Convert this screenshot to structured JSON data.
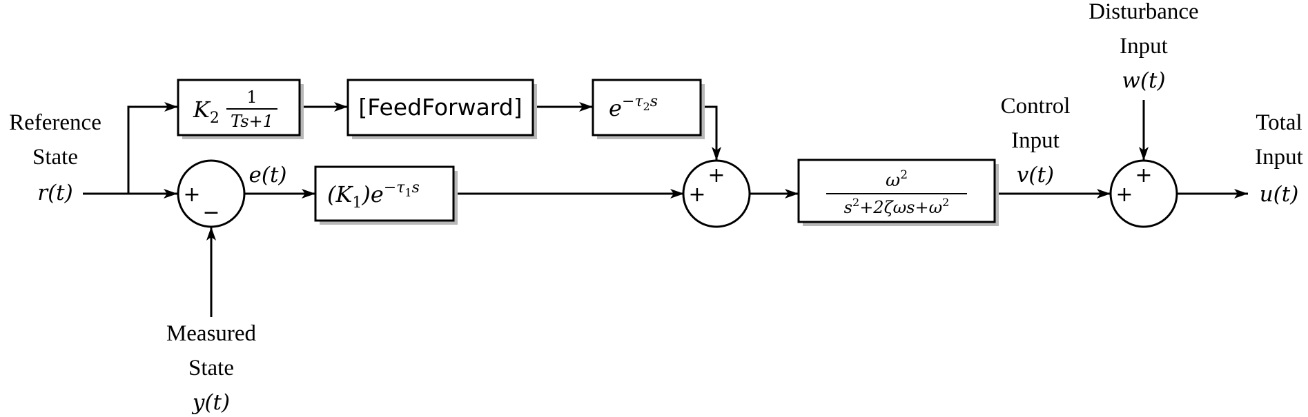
{
  "labels": {
    "reference": [
      "Reference",
      "State"
    ],
    "reference_signal": "r(t)",
    "measured": [
      "Measured",
      "State"
    ],
    "measured_signal": "y(t)",
    "error_signal": "e(t)",
    "control": [
      "Control",
      "Input"
    ],
    "control_signal": "v(t)",
    "disturbance": [
      "Disturbance",
      "Input"
    ],
    "disturbance_signal": "w(t)",
    "total": [
      "Total",
      "Input"
    ],
    "total_signal": "u(t)"
  },
  "blocks": {
    "gain_k2": {
      "gain": "K",
      "gain_sub": "2",
      "num": "1",
      "den": "Ts+1"
    },
    "feedforward": "[FeedForward]",
    "delay_tau2": {
      "base": "e",
      "exp": "−τ",
      "exp_sub": "2",
      "exp_tail": "s"
    },
    "gain_k1_delay": {
      "gain": "(K",
      "gain_sub": "1",
      "gain_close": ")e",
      "exp": "−τ",
      "exp_sub": "1",
      "exp_tail": "s"
    },
    "plant": {
      "num": "ω",
      "num_sup": "2",
      "den_a": "s",
      "den_sup1": "2",
      "den_b": "+2ζωs+ω",
      "den_sup2": "2"
    }
  },
  "sums": {
    "error_sum": {
      "left": "+",
      "bottom": "−"
    },
    "feedforward_sum": {
      "left": "+",
      "top": "+"
    },
    "disturbance_sum": {
      "left": "+",
      "top": "+"
    }
  }
}
